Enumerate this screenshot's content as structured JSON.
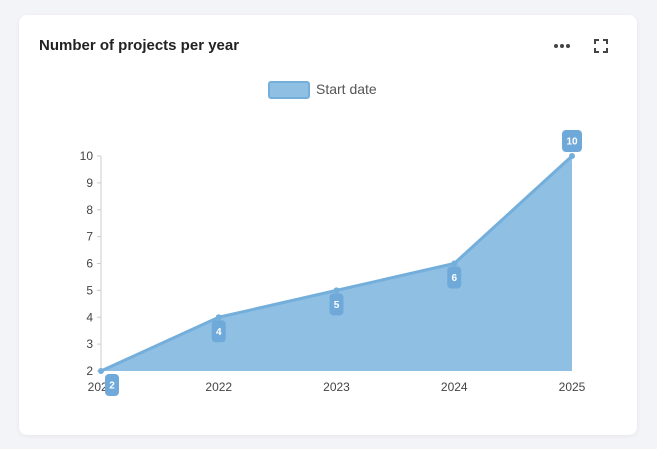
{
  "card": {
    "title": "Number of projects per year",
    "more_icon": "more-horizontal-icon",
    "expand_icon": "expand-icon"
  },
  "colors": {
    "fill": "#8fbfe3",
    "line": "#74aedb",
    "label_bg": "#6fa9d9",
    "axis_text": "#444444",
    "axis_line": "#cccccc"
  },
  "chart_data": {
    "type": "area",
    "title": "",
    "xlabel": "",
    "ylabel": "",
    "x": [
      "2021",
      "2022",
      "2023",
      "2024",
      "2025"
    ],
    "series": [
      {
        "name": "Start date",
        "values": [
          2,
          4,
          5,
          6,
          10
        ]
      }
    ],
    "ylim": [
      2,
      10
    ],
    "yticks": [
      "2",
      "3",
      "4",
      "5",
      "6",
      "7",
      "8",
      "9",
      "10"
    ],
    "grid": false,
    "legend": "top-center",
    "data_labels": true
  }
}
